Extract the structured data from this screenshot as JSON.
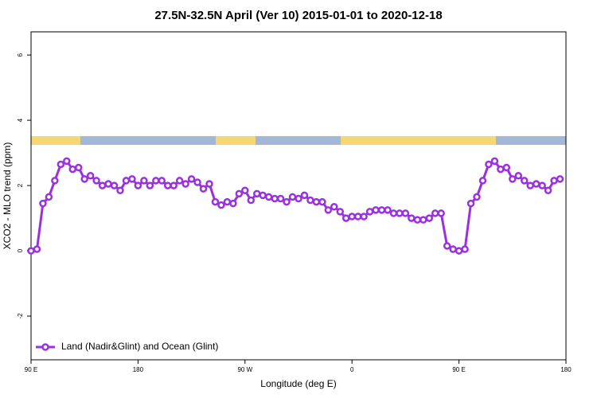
{
  "chart_data": {
    "type": "line",
    "title": "27.5N-32.5N April (Ver 10)   2015-01-01 to 2020-12-18",
    "x_label": "Longitude (deg E)",
    "y_label": "XCO2 - MLO trend (ppm)",
    "x": [
      90,
      95,
      100,
      105,
      110,
      115,
      120,
      125,
      130,
      135,
      140,
      145,
      150,
      155,
      160,
      165,
      170,
      175,
      180,
      185,
      190,
      195,
      200,
      205,
      210,
      215,
      220,
      225,
      230,
      235,
      240,
      245,
      250,
      255,
      260,
      265,
      270,
      275,
      280,
      285,
      290,
      295,
      300,
      305,
      310,
      315,
      320,
      325,
      330,
      335,
      340,
      345,
      350,
      355,
      360,
      365,
      370,
      375,
      380,
      385,
      390,
      395,
      400,
      405,
      410,
      415,
      420,
      425,
      430,
      435,
      440,
      445,
      450,
      455,
      460,
      465,
      470,
      475,
      480,
      485,
      490,
      495,
      500,
      505,
      510,
      515,
      520,
      525,
      530,
      535
    ],
    "series": [
      {
        "name": "Land (Nadir&Glint) and Ocean (Glint)",
        "color": "#9b30e0",
        "values": [
          0.0,
          0.05,
          1.45,
          1.65,
          2.15,
          2.65,
          2.75,
          2.5,
          2.55,
          2.2,
          2.3,
          2.15,
          2.0,
          2.05,
          2.0,
          1.85,
          2.15,
          2.2,
          2.0,
          2.15,
          2.0,
          2.15,
          2.15,
          2.0,
          2.0,
          2.15,
          2.05,
          2.2,
          2.1,
          1.9,
          2.05,
          1.5,
          1.4,
          1.5,
          1.45,
          1.75,
          1.85,
          1.55,
          1.75,
          1.7,
          1.65,
          1.6,
          1.6,
          1.5,
          1.65,
          1.6,
          1.7,
          1.55,
          1.5,
          1.5,
          1.25,
          1.35,
          1.2,
          1.0,
          1.05,
          1.05,
          1.05,
          1.2,
          1.25,
          1.25,
          1.25,
          1.15,
          1.15,
          1.15,
          1.0,
          0.95,
          0.95,
          1.0,
          1.15,
          1.15,
          0.15,
          0.05,
          0.0,
          0.05,
          1.45,
          1.65,
          2.15,
          2.65,
          2.75,
          2.5,
          2.55,
          2.2,
          2.3,
          2.15,
          2.0,
          2.05,
          2.0,
          1.85,
          2.15,
          2.2
        ]
      }
    ],
    "xlim": [
      90,
      540
    ],
    "xticks": [
      {
        "value": 90,
        "label": "90 E"
      },
      {
        "value": 180,
        "label": "180"
      },
      {
        "value": 270,
        "label": "90 W"
      },
      {
        "value": 360,
        "label": "0"
      },
      {
        "value": 450,
        "label": "90 E"
      },
      {
        "value": 540,
        "label": "180"
      }
    ],
    "ylim": [
      -3.34,
      6.71
    ],
    "yticks": [
      -2,
      0,
      2,
      4,
      6
    ],
    "legend": "bottom-left"
  }
}
